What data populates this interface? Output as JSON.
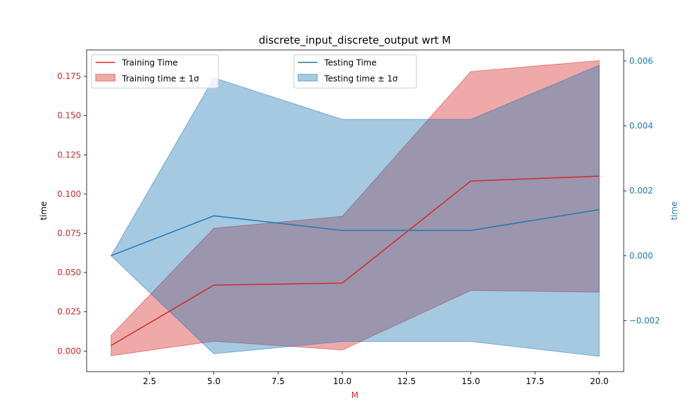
{
  "chart_data": {
    "type": "line",
    "title": "discrete_input_discrete_output wrt M",
    "xlabel": "M",
    "x": [
      1,
      5,
      10,
      15,
      20
    ],
    "xlim": [
      0.05,
      20.95
    ],
    "xticks": [
      2.5,
      5.0,
      7.5,
      10.0,
      12.5,
      15.0,
      17.5,
      20.0
    ],
    "left_axis": {
      "label": "time",
      "color": "#d62728",
      "ylim": [
        -0.0131,
        0.1918
      ],
      "ticks": [
        0.0,
        0.025,
        0.05,
        0.075,
        0.1,
        0.125,
        0.15,
        0.175
      ]
    },
    "right_axis": {
      "label": "time",
      "color": "#1f77b4",
      "ylim": [
        -0.00357,
        0.00634
      ],
      "ticks": [
        -0.002,
        0.0,
        0.002,
        0.004,
        0.006
      ]
    },
    "series": [
      {
        "name": "Training Time",
        "axis": "left",
        "color": "#d62728",
        "values": [
          0.0035,
          0.042,
          0.0433,
          0.1083,
          0.1114
        ],
        "band_name": "Training time ± 1σ",
        "band_lower": [
          -0.003,
          0.0063,
          0.0007,
          0.0386,
          0.0375
        ],
        "band_upper": [
          0.01,
          0.0782,
          0.0858,
          0.178,
          0.185
        ]
      },
      {
        "name": "Testing Time",
        "axis": "right",
        "color": "#1f77b4",
        "values": [
          0.0,
          0.00123,
          0.00078,
          0.00078,
          0.00142
        ],
        "band_name": "Testing time ± 1σ",
        "band_lower": [
          0.0,
          -0.00302,
          -0.00264,
          -0.00264,
          -0.0031
        ],
        "band_upper": [
          0.0,
          0.00548,
          0.0042,
          0.0042,
          0.00587
        ]
      }
    ],
    "legends": [
      "upper left",
      "upper center"
    ]
  }
}
